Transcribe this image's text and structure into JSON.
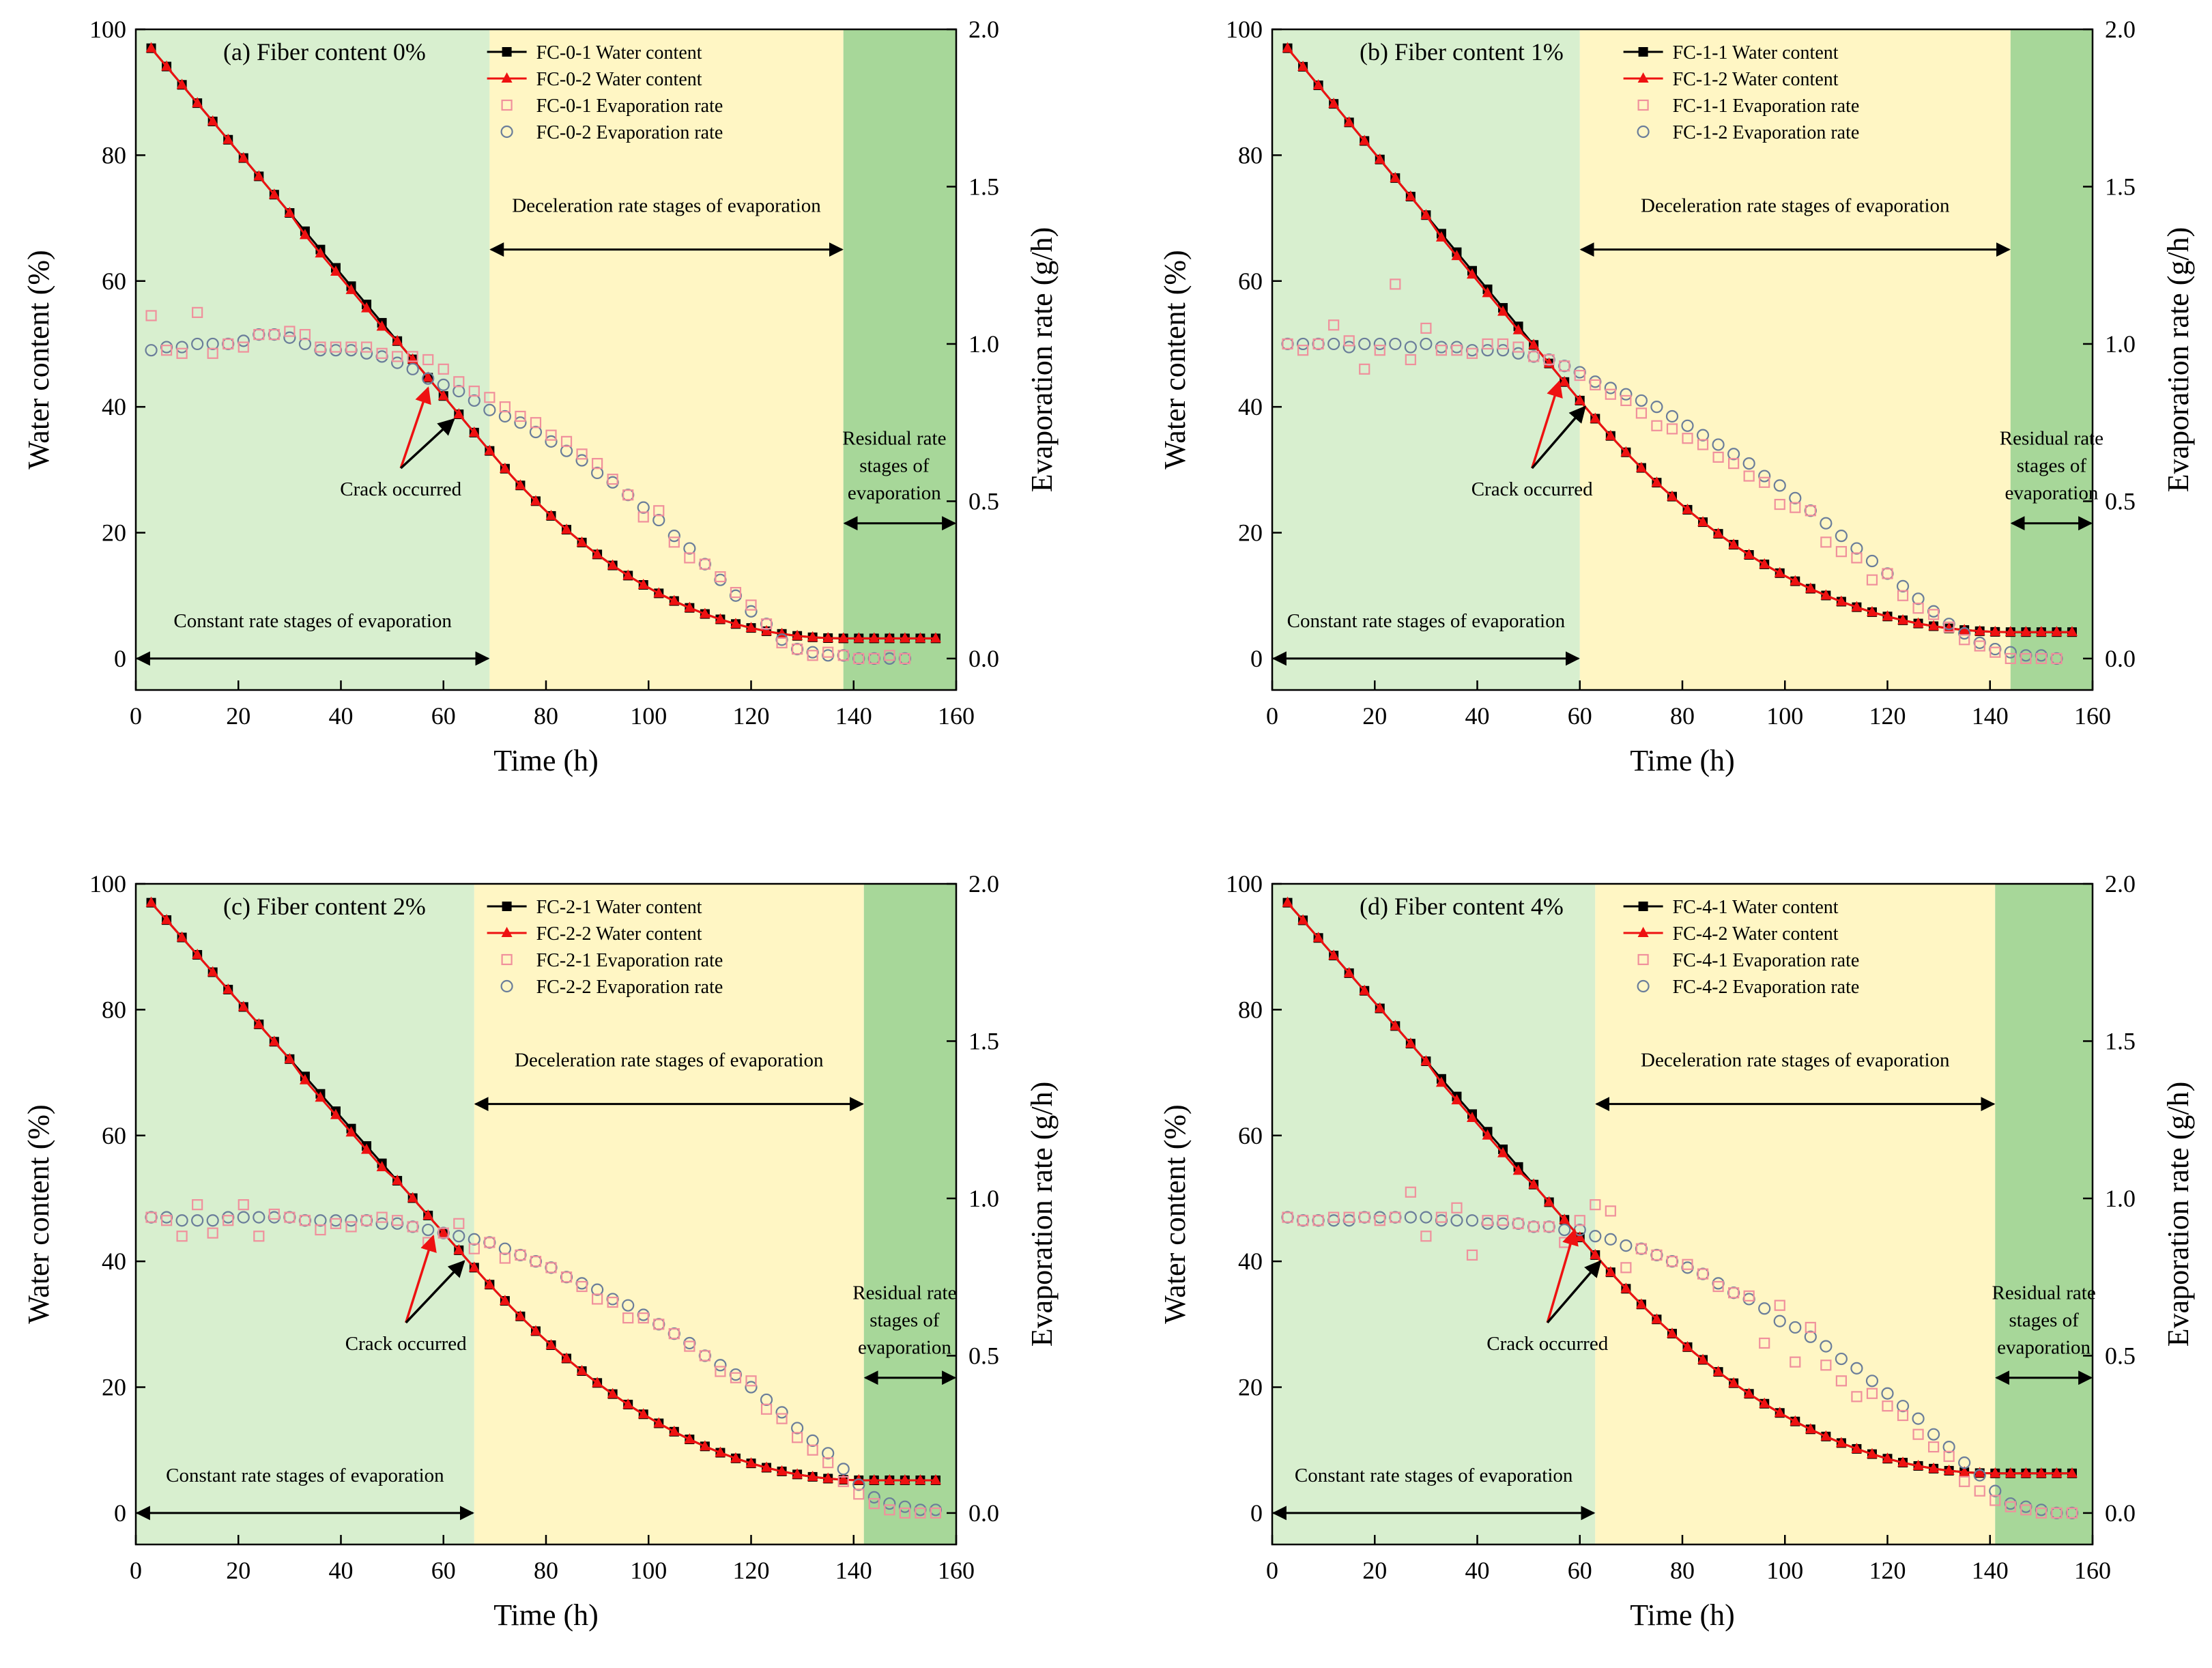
{
  "colors": {
    "constant": "#d8efcf",
    "deceleration": "#fff6c4",
    "residual": "#a7d799",
    "fc1": "#000000",
    "fc2": "#ee1111",
    "rate1": "#f0909c",
    "rate2": "#6a7d9a",
    "arrow_red": "#ee1111",
    "arrow_black": "#000000"
  },
  "chart_data": [
    {
      "type": "scatter",
      "title": "(a) Fiber content 0%",
      "xlabel": "Time (h)",
      "ylabel": "Water content (%)",
      "y2label": "Evaporation rate (g/h)",
      "xlim": [
        0,
        160
      ],
      "ylim": [
        -5,
        100
      ],
      "y2lim": [
        -0.1,
        2.0
      ],
      "xticks": [
        "0",
        "20",
        "40",
        "60",
        "80",
        "100",
        "120",
        "140",
        "160"
      ],
      "yticks": [
        "0",
        "20",
        "40",
        "60",
        "80",
        "100"
      ],
      "y2ticks": [
        "0.0",
        "0.5",
        "1.0",
        "1.5",
        "2.0"
      ],
      "grid": false,
      "stages": [
        {
          "name": "constant",
          "label": "Constant rate stages of evaporation",
          "x0": 0,
          "x1": 69
        },
        {
          "name": "deceleration",
          "label": "Deceleration rate stages of evaporation",
          "x0": 69,
          "x1": 138
        },
        {
          "name": "residual",
          "label": "Residual rate stages of evaporation",
          "label_lines": [
            "Residual rate",
            "stages of",
            "evaporation"
          ],
          "x0": 138,
          "x1": 160
        }
      ],
      "legend": [
        "FC-0-1 Water content",
        "FC-0-2 Water content",
        "FC-0-1 Evaporation rate",
        "FC-0-2 Evaporation rate"
      ],
      "annotation": {
        "text": "Crack occurred",
        "x1": 57,
        "y1": 43,
        "x2": 62,
        "y2": 38
      },
      "water": {
        "t_end": 138,
        "w_end": 3.2,
        "t_mid": 69,
        "w_mid": 33
      },
      "rate1": [
        1.09,
        0.98,
        0.97,
        1.1,
        0.97,
        1.0,
        0.99,
        1.03,
        1.03,
        1.04,
        1.03,
        0.99,
        0.99,
        0.99,
        0.99,
        0.97,
        0.96,
        0.96,
        0.95,
        0.92,
        0.88,
        0.85,
        0.83,
        0.8,
        0.77,
        0.75,
        0.71,
        0.69,
        0.65,
        0.62,
        0.57,
        0.52,
        0.45,
        0.47,
        0.37,
        0.32,
        0.3,
        0.26,
        0.21,
        0.17,
        0.11,
        0.05,
        0.03,
        0.01,
        0.02,
        0.01,
        0.0,
        0.0,
        0.01,
        0.0
      ],
      "rate2": [
        0.98,
        0.99,
        0.99,
        1.0,
        1.0,
        1.0,
        1.01,
        1.03,
        1.03,
        1.02,
        1.0,
        0.98,
        0.98,
        0.98,
        0.97,
        0.96,
        0.94,
        0.92,
        0.89,
        0.87,
        0.85,
        0.82,
        0.79,
        0.77,
        0.75,
        0.72,
        0.69,
        0.66,
        0.63,
        0.59,
        0.56,
        0.52,
        0.48,
        0.44,
        0.39,
        0.35,
        0.3,
        0.25,
        0.2,
        0.15,
        0.11,
        0.06,
        0.03,
        0.02,
        0.01,
        0.01,
        0.0,
        0.0,
        0.0,
        0.0
      ],
      "rate_t0": 3,
      "rate_dt": 3
    },
    {
      "type": "scatter",
      "title": "(b) Fiber content 1%",
      "xlabel": "Time (h)",
      "ylabel": "Water content (%)",
      "y2label": "Evaporation rate (g/h)",
      "xlim": [
        0,
        160
      ],
      "ylim": [
        -5,
        100
      ],
      "y2lim": [
        -0.1,
        2.0
      ],
      "xticks": [
        "0",
        "20",
        "40",
        "60",
        "80",
        "100",
        "120",
        "140",
        "160"
      ],
      "yticks": [
        "0",
        "20",
        "40",
        "60",
        "80",
        "100"
      ],
      "y2ticks": [
        "0.0",
        "0.5",
        "1.0",
        "1.5",
        "2.0"
      ],
      "grid": false,
      "stages": [
        {
          "name": "constant",
          "label": "Constant rate stages of evaporation",
          "x0": 0,
          "x1": 60
        },
        {
          "name": "deceleration",
          "label": "Deceleration rate stages of evaporation",
          "x0": 60,
          "x1": 144
        },
        {
          "name": "residual",
          "label": "Residual rate stages of evaporation",
          "label_lines": [
            "Residual rate",
            "stages of",
            "evaporation"
          ],
          "x0": 144,
          "x1": 160
        }
      ],
      "legend": [
        "FC-1-1 Water content",
        "FC-1-2 Water content",
        "FC-1-1 Evaporation rate",
        "FC-1-2 Evaporation rate"
      ],
      "annotation": {
        "text": "Crack occurred",
        "x1": 56,
        "y1": 44,
        "x2": 61,
        "y2": 40
      },
      "water": {
        "t_end": 144,
        "w_end": 4.2,
        "t_mid": 60,
        "w_mid": 41
      },
      "rate1": [
        1.0,
        0.98,
        1.0,
        1.06,
        1.01,
        0.92,
        0.98,
        1.19,
        0.95,
        1.05,
        0.98,
        0.98,
        0.97,
        1.0,
        1.0,
        0.99,
        0.96,
        0.95,
        0.93,
        0.9,
        0.87,
        0.84,
        0.82,
        0.78,
        0.74,
        0.73,
        0.7,
        0.68,
        0.64,
        0.62,
        0.58,
        0.56,
        0.49,
        0.48,
        0.47,
        0.37,
        0.34,
        0.32,
        0.25,
        0.27,
        0.2,
        0.16,
        0.14,
        0.1,
        0.06,
        0.04,
        0.02,
        0.0,
        0.0,
        0.0,
        0.0
      ],
      "rate2": [
        1.0,
        1.0,
        1.0,
        1.0,
        0.99,
        1.0,
        1.0,
        1.0,
        0.99,
        1.0,
        0.99,
        0.99,
        0.98,
        0.98,
        0.98,
        0.97,
        0.96,
        0.95,
        0.93,
        0.91,
        0.88,
        0.86,
        0.84,
        0.82,
        0.8,
        0.77,
        0.74,
        0.71,
        0.68,
        0.65,
        0.62,
        0.58,
        0.55,
        0.51,
        0.47,
        0.43,
        0.39,
        0.35,
        0.31,
        0.27,
        0.23,
        0.19,
        0.15,
        0.11,
        0.08,
        0.05,
        0.03,
        0.02,
        0.01,
        0.01,
        0.0
      ],
      "rate_t0": 3,
      "rate_dt": 3
    },
    {
      "type": "scatter",
      "title": "(c) Fiber content 2%",
      "xlabel": "Time (h)",
      "ylabel": "Water content (%)",
      "y2label": "Evaporation rate (g/h)",
      "xlim": [
        0,
        160
      ],
      "ylim": [
        -5,
        100
      ],
      "y2lim": [
        -0.1,
        2.0
      ],
      "xticks": [
        "0",
        "20",
        "40",
        "60",
        "80",
        "100",
        "120",
        "140",
        "160"
      ],
      "yticks": [
        "0",
        "20",
        "40",
        "60",
        "80",
        "100"
      ],
      "y2ticks": [
        "0.0",
        "0.5",
        "1.0",
        "1.5",
        "2.0"
      ],
      "grid": false,
      "stages": [
        {
          "name": "constant",
          "label": "Constant rate stages of evaporation",
          "x0": 0,
          "x1": 66
        },
        {
          "name": "deceleration",
          "label": "Deceleration rate stages of evaporation",
          "x0": 66,
          "x1": 142
        },
        {
          "name": "residual",
          "label": "Residual rate stages of evaporation",
          "label_lines": [
            "Residual rate",
            "stages of",
            "evaporation"
          ],
          "x0": 142,
          "x1": 160
        }
      ],
      "legend": [
        "FC-2-1 Water content",
        "FC-2-2 Water content",
        "FC-2-1 Evaporation rate",
        "FC-2-2 Evaporation rate"
      ],
      "annotation": {
        "text": "Crack occurred",
        "x1": 58,
        "y1": 44,
        "x2": 64,
        "y2": 40
      },
      "water": {
        "t_end": 142,
        "w_end": 5.2,
        "t_mid": 66,
        "w_mid": 39
      },
      "rate1": [
        0.94,
        0.93,
        0.88,
        0.98,
        0.89,
        0.93,
        0.98,
        0.88,
        0.95,
        0.94,
        0.93,
        0.9,
        0.92,
        0.91,
        0.93,
        0.94,
        0.93,
        0.91,
        0.86,
        0.89,
        0.92,
        0.84,
        0.86,
        0.81,
        0.82,
        0.8,
        0.78,
        0.75,
        0.72,
        0.68,
        0.67,
        0.62,
        0.62,
        0.6,
        0.57,
        0.53,
        0.5,
        0.45,
        0.43,
        0.42,
        0.33,
        0.3,
        0.24,
        0.2,
        0.16,
        0.1,
        0.06,
        0.03,
        0.01,
        0.0,
        0.0,
        0.0,
        0.0
      ],
      "rate2": [
        0.94,
        0.94,
        0.93,
        0.93,
        0.93,
        0.94,
        0.94,
        0.94,
        0.94,
        0.94,
        0.93,
        0.93,
        0.93,
        0.93,
        0.93,
        0.92,
        0.92,
        0.91,
        0.9,
        0.89,
        0.88,
        0.87,
        0.86,
        0.84,
        0.82,
        0.8,
        0.78,
        0.75,
        0.73,
        0.71,
        0.68,
        0.66,
        0.63,
        0.6,
        0.57,
        0.54,
        0.5,
        0.47,
        0.44,
        0.4,
        0.36,
        0.32,
        0.27,
        0.23,
        0.19,
        0.14,
        0.09,
        0.05,
        0.03,
        0.02,
        0.01,
        0.01,
        0.0
      ],
      "rate_t0": 3,
      "rate_dt": 3
    },
    {
      "type": "scatter",
      "title": "(d) Fiber content 4%",
      "xlabel": "Time (h)",
      "ylabel": "Water content (%)",
      "y2label": "Evaporation rate (g/h)",
      "xlim": [
        0,
        160
      ],
      "ylim": [
        -5,
        100
      ],
      "y2lim": [
        -0.1,
        2.0
      ],
      "xticks": [
        "0",
        "20",
        "40",
        "60",
        "80",
        "100",
        "120",
        "140",
        "160"
      ],
      "yticks": [
        "0",
        "20",
        "40",
        "60",
        "80",
        "100"
      ],
      "y2ticks": [
        "0.0",
        "0.5",
        "1.0",
        "1.5",
        "2.0"
      ],
      "grid": false,
      "stages": [
        {
          "name": "constant",
          "label": "Constant rate stages of evaporation",
          "x0": 0,
          "x1": 63
        },
        {
          "name": "deceleration",
          "label": "Deceleration rate stages of evaporation",
          "x0": 63,
          "x1": 141
        },
        {
          "name": "residual",
          "label": "Residual rate stages of evaporation",
          "label_lines": [
            "Residual rate",
            "stages of",
            "evaporation"
          ],
          "x0": 141,
          "x1": 160
        }
      ],
      "legend": [
        "FC-4-1 Water content",
        "FC-4-2 Water content",
        "FC-4-1 Evaporation rate",
        "FC-4-2 Evaporation rate"
      ],
      "annotation": {
        "text": "Crack occurred",
        "x1": 59,
        "y1": 45,
        "x2": 64,
        "y2": 40
      },
      "water": {
        "t_end": 141,
        "w_end": 6.3,
        "t_mid": 63,
        "w_mid": 41
      },
      "rate1": [
        0.94,
        0.93,
        0.93,
        0.94,
        0.94,
        0.94,
        0.93,
        0.94,
        1.02,
        0.88,
        0.94,
        0.97,
        0.82,
        0.93,
        0.93,
        0.92,
        0.91,
        0.91,
        0.86,
        0.93,
        0.98,
        0.96,
        0.78,
        0.84,
        0.82,
        0.8,
        0.79,
        0.76,
        0.72,
        0.7,
        0.69,
        0.54,
        0.66,
        0.48,
        0.59,
        0.47,
        0.42,
        0.37,
        0.38,
        0.34,
        0.31,
        0.25,
        0.21,
        0.18,
        0.1,
        0.07,
        0.04,
        0.02,
        0.01,
        0.0,
        0.0,
        0.0
      ],
      "rate2": [
        0.94,
        0.93,
        0.93,
        0.93,
        0.93,
        0.94,
        0.94,
        0.94,
        0.94,
        0.94,
        0.93,
        0.93,
        0.93,
        0.92,
        0.92,
        0.92,
        0.91,
        0.91,
        0.9,
        0.9,
        0.88,
        0.87,
        0.85,
        0.84,
        0.82,
        0.8,
        0.78,
        0.76,
        0.73,
        0.7,
        0.68,
        0.65,
        0.61,
        0.59,
        0.56,
        0.53,
        0.49,
        0.46,
        0.42,
        0.38,
        0.34,
        0.3,
        0.25,
        0.21,
        0.16,
        0.12,
        0.07,
        0.03,
        0.02,
        0.01,
        0.0,
        0.0
      ],
      "rate_t0": 3,
      "rate_dt": 3
    }
  ]
}
